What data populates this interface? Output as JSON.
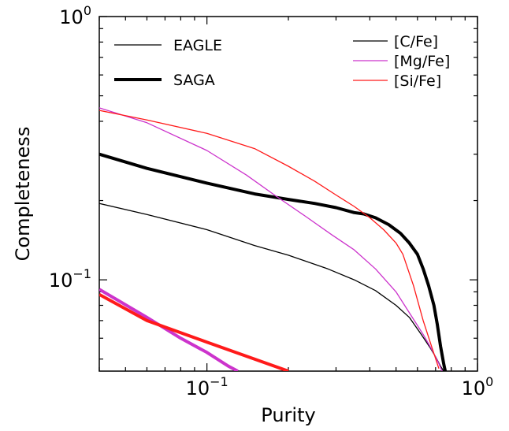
{
  "chart_data": {
    "type": "line",
    "xlabel": "Purity",
    "ylabel": "Completeness",
    "x_scale": "log",
    "y_scale": "log",
    "xlim": [
      0.04,
      1.0
    ],
    "ylim": [
      0.045,
      1.0
    ],
    "x_major_ticks": [
      {
        "value": 0.1,
        "base": "10",
        "exp": "−1"
      },
      {
        "value": 1.0,
        "base": "10",
        "exp": "0"
      }
    ],
    "y_major_ticks": [
      {
        "value": 0.1,
        "base": "10",
        "exp": "−1"
      },
      {
        "value": 1.0,
        "base": "10",
        "exp": "0"
      }
    ],
    "legend_linestyle": {
      "position": "top-left",
      "entries": [
        {
          "label": "EAGLE",
          "color": "#000000",
          "width": 1.3
        },
        {
          "label": "SAGA",
          "color": "#000000",
          "width": 4
        }
      ]
    },
    "legend_color": {
      "position": "top-right",
      "entries": [
        {
          "label": "[C/Fe]",
          "color": "#000000"
        },
        {
          "label": "[Mg/Fe]",
          "color": "#cc33cc"
        },
        {
          "label": "[Si/Fe]",
          "color": "#ff1a1a"
        }
      ]
    },
    "series": [
      {
        "element": "[C/Fe]",
        "set": "SAGA",
        "color": "#000000",
        "width": 4,
        "x": [
          0.04,
          0.06,
          0.1,
          0.15,
          0.2,
          0.25,
          0.3,
          0.35,
          0.38,
          0.42,
          0.47,
          0.52,
          0.56,
          0.6,
          0.63,
          0.66,
          0.69,
          0.71,
          0.73,
          0.75,
          0.76
        ],
        "y": [
          0.3,
          0.265,
          0.233,
          0.212,
          0.202,
          0.195,
          0.188,
          0.18,
          0.178,
          0.172,
          0.162,
          0.15,
          0.138,
          0.125,
          0.11,
          0.095,
          0.08,
          0.068,
          0.056,
          0.048,
          0.045
        ]
      },
      {
        "element": "[C/Fe]",
        "set": "EAGLE",
        "color": "#000000",
        "width": 1.3,
        "x": [
          0.04,
          0.06,
          0.1,
          0.15,
          0.2,
          0.28,
          0.35,
          0.42,
          0.5,
          0.56,
          0.62,
          0.67,
          0.7,
          0.73,
          0.75
        ],
        "y": [
          0.195,
          0.177,
          0.155,
          0.135,
          0.124,
          0.11,
          0.1,
          0.091,
          0.08,
          0.072,
          0.062,
          0.055,
          0.051,
          0.047,
          0.045
        ]
      },
      {
        "element": "[Mg/Fe]",
        "set": "EAGLE",
        "color": "#cc33cc",
        "width": 1.3,
        "x": [
          0.04,
          0.06,
          0.1,
          0.14,
          0.18,
          0.23,
          0.29,
          0.35,
          0.42,
          0.5,
          0.56,
          0.63,
          0.68,
          0.72,
          0.74
        ],
        "y": [
          0.45,
          0.395,
          0.31,
          0.25,
          0.208,
          0.175,
          0.148,
          0.13,
          0.11,
          0.09,
          0.075,
          0.062,
          0.054,
          0.048,
          0.045
        ]
      },
      {
        "element": "[Si/Fe]",
        "set": "EAGLE",
        "color": "#ff1a1a",
        "width": 1.3,
        "x": [
          0.04,
          0.06,
          0.1,
          0.15,
          0.2,
          0.25,
          0.3,
          0.35,
          0.4,
          0.45,
          0.5,
          0.53,
          0.58,
          0.63,
          0.68,
          0.72
        ],
        "y": [
          0.44,
          0.405,
          0.36,
          0.315,
          0.27,
          0.237,
          0.21,
          0.19,
          0.172,
          0.155,
          0.138,
          0.125,
          0.095,
          0.07,
          0.055,
          0.046
        ]
      },
      {
        "element": "[Mg/Fe]",
        "set": "SAGA",
        "color": "#cc33cc",
        "width": 4,
        "x": [
          0.04,
          0.06,
          0.08,
          0.1,
          0.12,
          0.13
        ],
        "y": [
          0.092,
          0.072,
          0.06,
          0.053,
          0.047,
          0.045
        ]
      },
      {
        "element": "[Si/Fe]",
        "set": "SAGA",
        "color": "#ff1a1a",
        "width": 4,
        "x": [
          0.04,
          0.06,
          0.1,
          0.15,
          0.2
        ],
        "y": [
          0.088,
          0.07,
          0.058,
          0.05,
          0.045
        ]
      }
    ]
  }
}
